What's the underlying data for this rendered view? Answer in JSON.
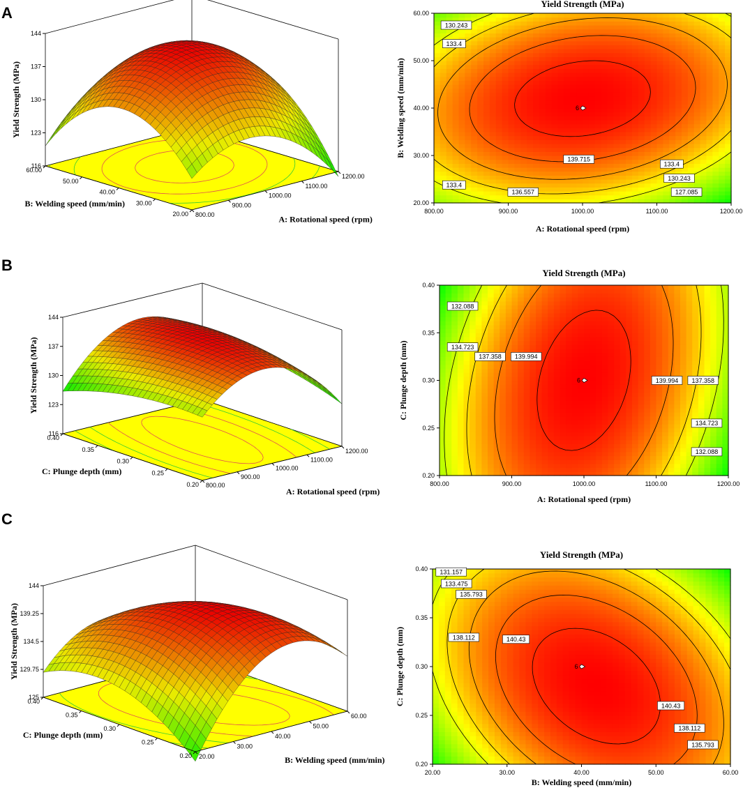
{
  "colors": {
    "low": "#00ff00",
    "mid": "#ffff00",
    "high": "#ff0000",
    "floor": "#ffff00"
  },
  "chart_data": [
    {
      "type": "surface3d",
      "panel": "A",
      "zlabel": "Yield Strength (MPa)",
      "xlabel": "A: Rotational speed (rpm)",
      "ylabel": "B: Welding speed (mm/min)",
      "xlim": [
        800,
        1200
      ],
      "ylim": [
        20,
        60
      ],
      "zlim": [
        116,
        144
      ],
      "xticks": [
        "800.00",
        "900.00",
        "1000.00",
        "1100.00",
        "1200.00"
      ],
      "yticks": [
        "20.00",
        "30.00",
        "40.00",
        "50.00",
        "60.00"
      ],
      "zticks": [
        "116",
        "123",
        "130",
        "137",
        "144"
      ],
      "model": {
        "b0": 141.5,
        "bx": -8.8,
        "by": -11.5,
        "bxy": 3.5,
        "cx": 1000,
        "cy": 42
      }
    },
    {
      "type": "contour",
      "panel": "A",
      "title": "Yield Strength (MPa)",
      "xlabel": "A: Rotational speed (rpm)",
      "ylabel": "B: Welding speed (mm/min)",
      "xlim": [
        800,
        1200
      ],
      "ylim": [
        20,
        60
      ],
      "xticks": [
        "800.00",
        "900.00",
        "1000.00",
        "1100.00",
        "1200.00"
      ],
      "yticks": [
        "20.00",
        "30.00",
        "40.00",
        "50.00",
        "60.00"
      ],
      "levels": [
        "127.085",
        "130.243",
        "133.4",
        "136.557",
        "139.715"
      ],
      "labels": [
        {
          "text": "130.243",
          "x": 830,
          "y": 57.5
        },
        {
          "text": "133.4",
          "x": 827,
          "y": 53.6
        },
        {
          "text": "133.4",
          "x": 827,
          "y": 23.8
        },
        {
          "text": "136.557",
          "x": 920,
          "y": 22.3
        },
        {
          "text": "139.715",
          "x": 995,
          "y": 29.2
        },
        {
          "text": "133.4",
          "x": 1120,
          "y": 28.2
        },
        {
          "text": "130.243",
          "x": 1130,
          "y": 25.2
        },
        {
          "text": "127.085",
          "x": 1140,
          "y": 22.3
        }
      ],
      "design_point": {
        "label": "6",
        "x": 1000,
        "y": 40
      },
      "model": {
        "b0": 141.5,
        "bx": -8.8,
        "by": -11.5,
        "bxy": 3.5,
        "cx": 1000,
        "cy": 42
      }
    },
    {
      "type": "surface3d",
      "panel": "B",
      "zlabel": "Yield Strength (MPa)",
      "xlabel": "A: Rotational speed (rpm)",
      "ylabel": "C: Plunge depth (mm)",
      "xlim": [
        800,
        1200
      ],
      "ylim": [
        0.2,
        0.4
      ],
      "zlim": [
        116,
        144
      ],
      "xticks": [
        "800.00",
        "900.00",
        "1000.00",
        "1100.00",
        "1200.00"
      ],
      "yticks": [
        "0.20",
        "0.25",
        "0.30",
        "0.35",
        "0.40"
      ],
      "zticks": [
        "116",
        "123",
        "130",
        "137",
        "144"
      ],
      "model": {
        "b0": 141.0,
        "bx": -10.3,
        "by": -2.0,
        "bxy": 2.5,
        "cx": 1000,
        "cy": 0.3
      }
    },
    {
      "type": "contour",
      "panel": "B",
      "title": "Yield Strength (MPa)",
      "xlabel": "A: Rotational speed (rpm)",
      "ylabel": "C: Plunge depth (mm)",
      "xlim": [
        800,
        1200
      ],
      "ylim": [
        0.2,
        0.4
      ],
      "xticks": [
        "800.00",
        "900.00",
        "1000.00",
        "1100.00",
        "1200.00"
      ],
      "yticks": [
        "0.20",
        "0.25",
        "0.30",
        "0.35",
        "0.40"
      ],
      "levels": [
        "132.088",
        "134.723",
        "137.358",
        "139.994"
      ],
      "labels": [
        {
          "text": "132.088",
          "x": 832,
          "y": 0.378
        },
        {
          "text": "134.723",
          "x": 832,
          "y": 0.335
        },
        {
          "text": "137.358",
          "x": 870,
          "y": 0.325
        },
        {
          "text": "139.994",
          "x": 920,
          "y": 0.325
        },
        {
          "text": "139.994",
          "x": 1115,
          "y": 0.3
        },
        {
          "text": "137.358",
          "x": 1165,
          "y": 0.3
        },
        {
          "text": "134.723",
          "x": 1170,
          "y": 0.255
        },
        {
          "text": "132.088",
          "x": 1170,
          "y": 0.225
        }
      ],
      "design_point": {
        "label": "6",
        "x": 1000,
        "y": 0.3
      },
      "model": {
        "b0": 141.0,
        "bx": -10.3,
        "by": -2.0,
        "bxy": 2.5,
        "cx": 1000,
        "cy": 0.3
      }
    },
    {
      "type": "surface3d",
      "panel": "C",
      "zlabel": "Yield Strength (MPa)",
      "xlabel": "B: Welding speed (mm/min)",
      "ylabel": "C: Plunge depth (mm)",
      "xlim": [
        20,
        60
      ],
      "ylim": [
        0.2,
        0.4
      ],
      "zlim": [
        125,
        144
      ],
      "xticks": [
        "20.00",
        "30.00",
        "40.00",
        "50.00",
        "60.00"
      ],
      "yticks": [
        "0.20",
        "0.25",
        "0.30",
        "0.35",
        "0.40"
      ],
      "zticks": [
        "125",
        "129.75",
        "134.5",
        "139.25",
        "144"
      ],
      "model": {
        "b0": 142.0,
        "bx": -9.5,
        "by": -5.0,
        "bxy": -4.5,
        "cx": 42,
        "cy": 0.28
      }
    },
    {
      "type": "contour",
      "panel": "C",
      "title": "Yield Strength (MPa)",
      "xlabel": "B: Welding speed (mm/min)",
      "ylabel": "C: Plunge depth (mm)",
      "xlim": [
        20,
        60
      ],
      "ylim": [
        0.2,
        0.4
      ],
      "xticks": [
        "20.00",
        "30.00",
        "40.00",
        "50.00",
        "60.00"
      ],
      "yticks": [
        "0.20",
        "0.25",
        "0.30",
        "0.35",
        "0.40"
      ],
      "levels": [
        "131.157",
        "133.475",
        "135.793",
        "138.112",
        "140.43"
      ],
      "labels": [
        {
          "text": "131.157",
          "x": 22.5,
          "y": 0.397
        },
        {
          "text": "133.475",
          "x": 23.2,
          "y": 0.385
        },
        {
          "text": "135.793",
          "x": 25.2,
          "y": 0.374
        },
        {
          "text": "138.112",
          "x": 24.2,
          "y": 0.33
        },
        {
          "text": "140.43",
          "x": 31.2,
          "y": 0.328
        },
        {
          "text": "140.43",
          "x": 52,
          "y": 0.26
        },
        {
          "text": "138.112",
          "x": 54.5,
          "y": 0.237
        },
        {
          "text": "135.793",
          "x": 56.3,
          "y": 0.22
        }
      ],
      "design_point": {
        "label": "6",
        "x": 40,
        "y": 0.3
      },
      "model": {
        "b0": 142.0,
        "bx": -9.5,
        "by": -5.0,
        "bxy": -4.5,
        "cx": 42,
        "cy": 0.28
      }
    }
  ],
  "panels": [
    "A",
    "B",
    "C"
  ]
}
